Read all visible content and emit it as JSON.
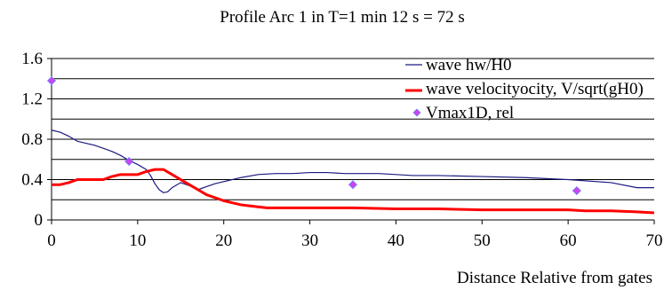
{
  "chart_data": {
    "type": "line",
    "title": "Profile Arc 1 in T=1 min 12 s = 72 s",
    "xlabel": "Distance Relative from gates",
    "ylabel": "",
    "xlim": [
      0,
      70
    ],
    "ylim": [
      0,
      1.6
    ],
    "x_ticks": [
      "0",
      "10",
      "20",
      "30",
      "40",
      "50",
      "60",
      "70"
    ],
    "y_ticks": [
      "0",
      "0.4",
      "0.8",
      "1.2",
      "1.6"
    ],
    "grid": "horizontal",
    "legend_position": "right",
    "series": [
      {
        "name": "wave hw/H0",
        "kind": "line",
        "color": "#1a1a80",
        "x": [
          0,
          1,
          2,
          3,
          4,
          5,
          6,
          7,
          8,
          9,
          10,
          11,
          11.5,
          12,
          12.5,
          13,
          13.5,
          14,
          15,
          16,
          17,
          18,
          19,
          20,
          22,
          24,
          26,
          28,
          30,
          32,
          34,
          35,
          38,
          40,
          42,
          45,
          50,
          55,
          60,
          65,
          68,
          70
        ],
        "y": [
          0.89,
          0.87,
          0.83,
          0.78,
          0.76,
          0.74,
          0.71,
          0.68,
          0.64,
          0.59,
          0.55,
          0.5,
          0.44,
          0.36,
          0.3,
          0.27,
          0.28,
          0.32,
          0.37,
          0.34,
          0.3,
          0.33,
          0.36,
          0.38,
          0.42,
          0.45,
          0.46,
          0.46,
          0.47,
          0.47,
          0.46,
          0.46,
          0.46,
          0.45,
          0.44,
          0.44,
          0.43,
          0.42,
          0.4,
          0.37,
          0.32,
          0.32
        ]
      },
      {
        "name": "wave velocityocity, V/sqrt(gH0)",
        "kind": "step-line",
        "color": "#ff0000",
        "x": [
          0,
          1,
          2,
          3,
          4,
          6,
          7,
          8,
          9,
          10,
          11,
          12,
          13,
          14,
          15,
          16,
          17,
          18,
          19,
          20,
          21,
          22,
          23,
          24,
          25,
          30,
          35,
          40,
          42,
          45,
          50,
          52,
          55,
          60,
          62,
          65,
          68,
          70
        ],
        "y": [
          0.35,
          0.35,
          0.37,
          0.4,
          0.4,
          0.4,
          0.43,
          0.45,
          0.45,
          0.45,
          0.48,
          0.5,
          0.5,
          0.45,
          0.4,
          0.35,
          0.3,
          0.25,
          0.22,
          0.19,
          0.17,
          0.15,
          0.14,
          0.13,
          0.12,
          0.12,
          0.12,
          0.11,
          0.11,
          0.11,
          0.1,
          0.1,
          0.1,
          0.1,
          0.09,
          0.09,
          0.08,
          0.07
        ]
      },
      {
        "name": "Vmax1D, rel",
        "kind": "scatter",
        "color": "#cc44ee",
        "x": [
          0,
          9,
          35,
          61
        ],
        "y": [
          1.38,
          0.58,
          0.35,
          0.29
        ]
      }
    ]
  }
}
